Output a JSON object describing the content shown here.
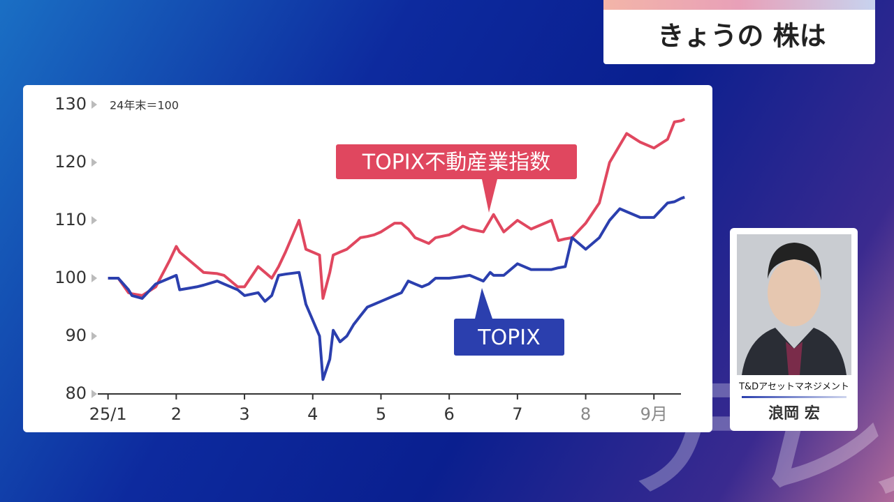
{
  "header": {
    "title": "きょうの 株は"
  },
  "watermark": "テレ東",
  "guest": {
    "company": "T&Dアセットマネジメント",
    "name": "浪岡 宏"
  },
  "chart_data": {
    "type": "line",
    "subtitle": "24年末＝100",
    "x": [
      1.0,
      1.15,
      1.3,
      1.35,
      1.5,
      1.7,
      1.9,
      2.0,
      2.05,
      2.2,
      2.3,
      2.4,
      2.6,
      2.7,
      2.9,
      3.0,
      3.2,
      3.3,
      3.4,
      3.5,
      3.6,
      3.8,
      3.9,
      4.1,
      4.15,
      4.25,
      4.3,
      4.4,
      4.5,
      4.6,
      4.7,
      4.8,
      4.9,
      5.0,
      5.2,
      5.3,
      5.4,
      5.5,
      5.6,
      5.7,
      5.8,
      6.0,
      6.2,
      6.3,
      6.5,
      6.6,
      6.65,
      6.8,
      7.0,
      7.2,
      7.5,
      7.6,
      7.7,
      7.8,
      8.0,
      8.2,
      8.35,
      8.5,
      8.6,
      8.8,
      9.0,
      9.2,
      9.3,
      9.4,
      9.45
    ],
    "series": [
      {
        "name": "TOPIX不動産業指数",
        "color": "#e0475f",
        "values": [
          100,
          100,
          97.5,
          97.3,
          97,
          98.5,
          103,
          105.5,
          104.5,
          103,
          102,
          101,
          100.8,
          100.5,
          98.5,
          98.5,
          102,
          101,
          100,
          102,
          104.5,
          110,
          105,
          104,
          96.5,
          101,
          104,
          104.5,
          105,
          106,
          107,
          107.2,
          107.5,
          108,
          109.5,
          109.5,
          108.5,
          107,
          106.5,
          106,
          107,
          107.5,
          109,
          108.5,
          108,
          110,
          111,
          108,
          110,
          108.5,
          110,
          106.5,
          106.8,
          107,
          109.5,
          113,
          120,
          123,
          125,
          123.5,
          122.5,
          124,
          127,
          127.2,
          127.5
        ]
      },
      {
        "name": "TOPIX",
        "color": "#2b3fae",
        "values": [
          100,
          100,
          98,
          97,
          96.5,
          99,
          100,
          100.5,
          98,
          98.3,
          98.5,
          98.8,
          99.5,
          99,
          98,
          97,
          97.5,
          96,
          97,
          100.5,
          100.7,
          101,
          95.5,
          90,
          82.5,
          86,
          91,
          89,
          90,
          92,
          93.5,
          95,
          95.5,
          96,
          97,
          97.5,
          99.5,
          99,
          98.5,
          99,
          100,
          100,
          100.3,
          100.5,
          99.5,
          101,
          100.5,
          100.5,
          102.5,
          101.5,
          101.5,
          101.8,
          102,
          107,
          105,
          107,
          110,
          112,
          111.5,
          110.5,
          110.5,
          113,
          113.2,
          113.8,
          114
        ]
      }
    ],
    "xlim": [
      0.85,
      9.55
    ],
    "xticks": [
      {
        "value": 1,
        "label": "25/1"
      },
      2,
      3,
      4,
      5,
      6,
      7,
      8,
      {
        "value": 9,
        "label": "9月"
      }
    ],
    "ylim": [
      80,
      130
    ],
    "yticks": [
      80,
      90,
      100,
      110,
      120,
      130
    ]
  }
}
